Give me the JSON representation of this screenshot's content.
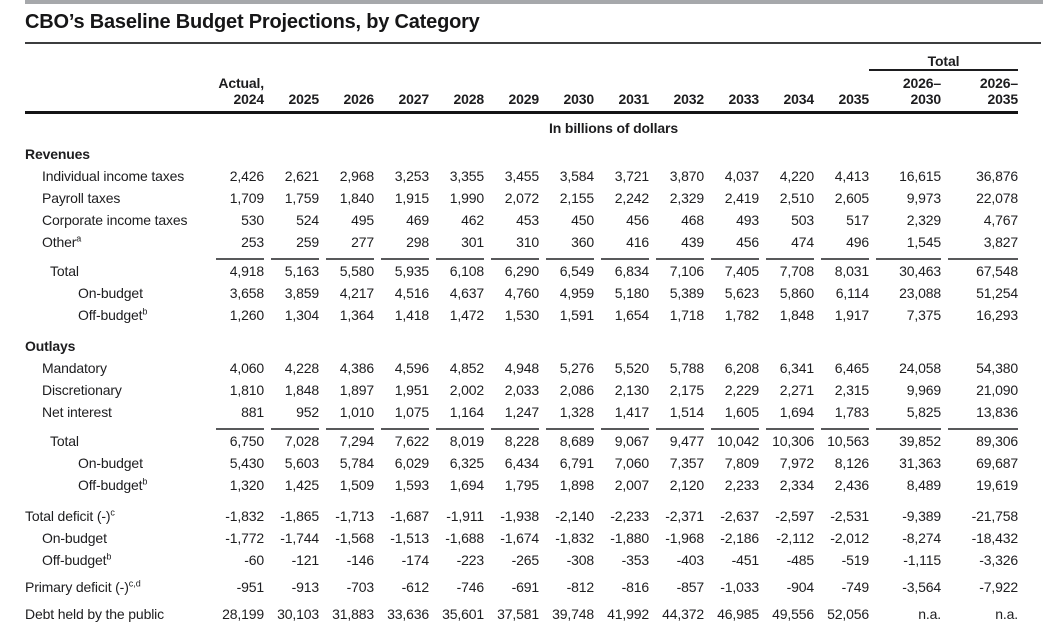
{
  "title": "CBO’s Baseline Budget Projections, by Category",
  "colors": {
    "top_bar": "#a6a8ab",
    "text": "#1d1d1f",
    "heavy_rule": "#141415",
    "segment_rule": "#58595b"
  },
  "header": {
    "total_spanner": "Total",
    "col_first": {
      "line1": "Actual,",
      "line2": "2024"
    },
    "years": [
      "2025",
      "2026",
      "2027",
      "2028",
      "2029",
      "2030",
      "2031",
      "2032",
      "2033",
      "2034",
      "2035"
    ],
    "totals": [
      {
        "line1": "2026–",
        "line2": "2030"
      },
      {
        "line1": "2026–",
        "line2": "2035"
      }
    ],
    "units": "In billions of dollars"
  },
  "rows": [
    {
      "type": "section",
      "label": "Revenues"
    },
    {
      "type": "data",
      "label": "Individual income taxes",
      "indent": 1,
      "values": [
        "2,426",
        "2,621",
        "2,968",
        "3,253",
        "3,355",
        "3,455",
        "3,584",
        "3,721",
        "3,870",
        "4,037",
        "4,220",
        "4,413",
        "16,615",
        "36,876"
      ]
    },
    {
      "type": "data",
      "label": "Payroll taxes",
      "indent": 1,
      "values": [
        "1,709",
        "1,759",
        "1,840",
        "1,915",
        "1,990",
        "2,072",
        "2,155",
        "2,242",
        "2,329",
        "2,419",
        "2,510",
        "2,605",
        "9,973",
        "22,078"
      ]
    },
    {
      "type": "data",
      "label": "Corporate income taxes",
      "indent": 1,
      "values": [
        "530",
        "524",
        "495",
        "469",
        "462",
        "453",
        "450",
        "456",
        "468",
        "493",
        "503",
        "517",
        "2,329",
        "4,767"
      ]
    },
    {
      "type": "data",
      "label": "Other",
      "sup": "a",
      "indent": 1,
      "values": [
        "253",
        "259",
        "277",
        "298",
        "301",
        "310",
        "360",
        "416",
        "439",
        "456",
        "474",
        "496",
        "1,545",
        "3,827"
      ]
    },
    {
      "type": "data",
      "label": "Total",
      "indent": 1.5,
      "bold": true,
      "rule": true,
      "values": [
        "4,918",
        "5,163",
        "5,580",
        "5,935",
        "6,108",
        "6,290",
        "6,549",
        "6,834",
        "7,106",
        "7,405",
        "7,708",
        "8,031",
        "30,463",
        "67,548"
      ]
    },
    {
      "type": "data",
      "label": "On-budget",
      "indent": 2,
      "values": [
        "3,658",
        "3,859",
        "4,217",
        "4,516",
        "4,637",
        "4,760",
        "4,959",
        "5,180",
        "5,389",
        "5,623",
        "5,860",
        "6,114",
        "23,088",
        "51,254"
      ]
    },
    {
      "type": "data",
      "label": "Off-budget",
      "sup": "b",
      "indent": 2,
      "values": [
        "1,260",
        "1,304",
        "1,364",
        "1,418",
        "1,472",
        "1,530",
        "1,591",
        "1,654",
        "1,718",
        "1,782",
        "1,848",
        "1,917",
        "7,375",
        "16,293"
      ]
    },
    {
      "type": "section",
      "label": "Outlays",
      "gap": "lg"
    },
    {
      "type": "data",
      "label": "Mandatory",
      "indent": 1,
      "values": [
        "4,060",
        "4,228",
        "4,386",
        "4,596",
        "4,852",
        "4,948",
        "5,276",
        "5,520",
        "5,788",
        "6,208",
        "6,341",
        "6,465",
        "24,058",
        "54,380"
      ]
    },
    {
      "type": "data",
      "label": "Discretionary",
      "indent": 1,
      "values": [
        "1,810",
        "1,848",
        "1,897",
        "1,951",
        "2,002",
        "2,033",
        "2,086",
        "2,130",
        "2,175",
        "2,229",
        "2,271",
        "2,315",
        "9,969",
        "21,090"
      ]
    },
    {
      "type": "data",
      "label": "Net interest",
      "indent": 1,
      "values": [
        "881",
        "952",
        "1,010",
        "1,075",
        "1,164",
        "1,247",
        "1,328",
        "1,417",
        "1,514",
        "1,605",
        "1,694",
        "1,783",
        "5,825",
        "13,836"
      ]
    },
    {
      "type": "data",
      "label": "Total",
      "indent": 1.5,
      "bold": true,
      "rule": true,
      "values": [
        "6,750",
        "7,028",
        "7,294",
        "7,622",
        "8,019",
        "8,228",
        "8,689",
        "9,067",
        "9,477",
        "10,042",
        "10,306",
        "10,563",
        "39,852",
        "89,306"
      ]
    },
    {
      "type": "data",
      "label": "On-budget",
      "indent": 2,
      "values": [
        "5,430",
        "5,603",
        "5,784",
        "6,029",
        "6,325",
        "6,434",
        "6,791",
        "7,060",
        "7,357",
        "7,809",
        "7,972",
        "8,126",
        "31,363",
        "69,687"
      ]
    },
    {
      "type": "data",
      "label": "Off-budget",
      "sup": "b",
      "indent": 2,
      "values": [
        "1,320",
        "1,425",
        "1,509",
        "1,593",
        "1,694",
        "1,795",
        "1,898",
        "2,007",
        "2,120",
        "2,233",
        "2,334",
        "2,436",
        "8,489",
        "19,619"
      ]
    },
    {
      "type": "data",
      "label": "Total deficit (-)",
      "sup": "c",
      "indent": 0,
      "bold": true,
      "gap": "lg",
      "values": [
        "-1,832",
        "-1,865",
        "-1,713",
        "-1,687",
        "-1,911",
        "-1,938",
        "-2,140",
        "-2,233",
        "-2,371",
        "-2,637",
        "-2,597",
        "-2,531",
        "-9,389",
        "-21,758"
      ]
    },
    {
      "type": "data",
      "label": "On-budget",
      "indent": 1,
      "values": [
        "-1,772",
        "-1,744",
        "-1,568",
        "-1,513",
        "-1,688",
        "-1,674",
        "-1,832",
        "-1,880",
        "-1,968",
        "-2,186",
        "-2,112",
        "-2,012",
        "-8,274",
        "-18,432"
      ]
    },
    {
      "type": "data",
      "label": "Off-budget",
      "sup": "b",
      "indent": 1,
      "values": [
        "-60",
        "-121",
        "-146",
        "-174",
        "-223",
        "-265",
        "-308",
        "-353",
        "-403",
        "-451",
        "-485",
        "-519",
        "-1,115",
        "-3,326"
      ]
    },
    {
      "type": "data",
      "label": "Primary deficit (-)",
      "sup": "c,d",
      "indent": 0,
      "gap": "md",
      "values": [
        "-951",
        "-913",
        "-703",
        "-612",
        "-746",
        "-691",
        "-812",
        "-816",
        "-857",
        "-1,033",
        "-904",
        "-749",
        "-3,564",
        "-7,922"
      ]
    },
    {
      "type": "data",
      "label": "Debt held by the public",
      "indent": 0,
      "gap": "md",
      "values": [
        "28,199",
        "30,103",
        "31,883",
        "33,636",
        "35,601",
        "37,581",
        "39,748",
        "41,992",
        "44,372",
        "46,985",
        "49,556",
        "52,056",
        "n.a.",
        "n.a."
      ]
    }
  ]
}
